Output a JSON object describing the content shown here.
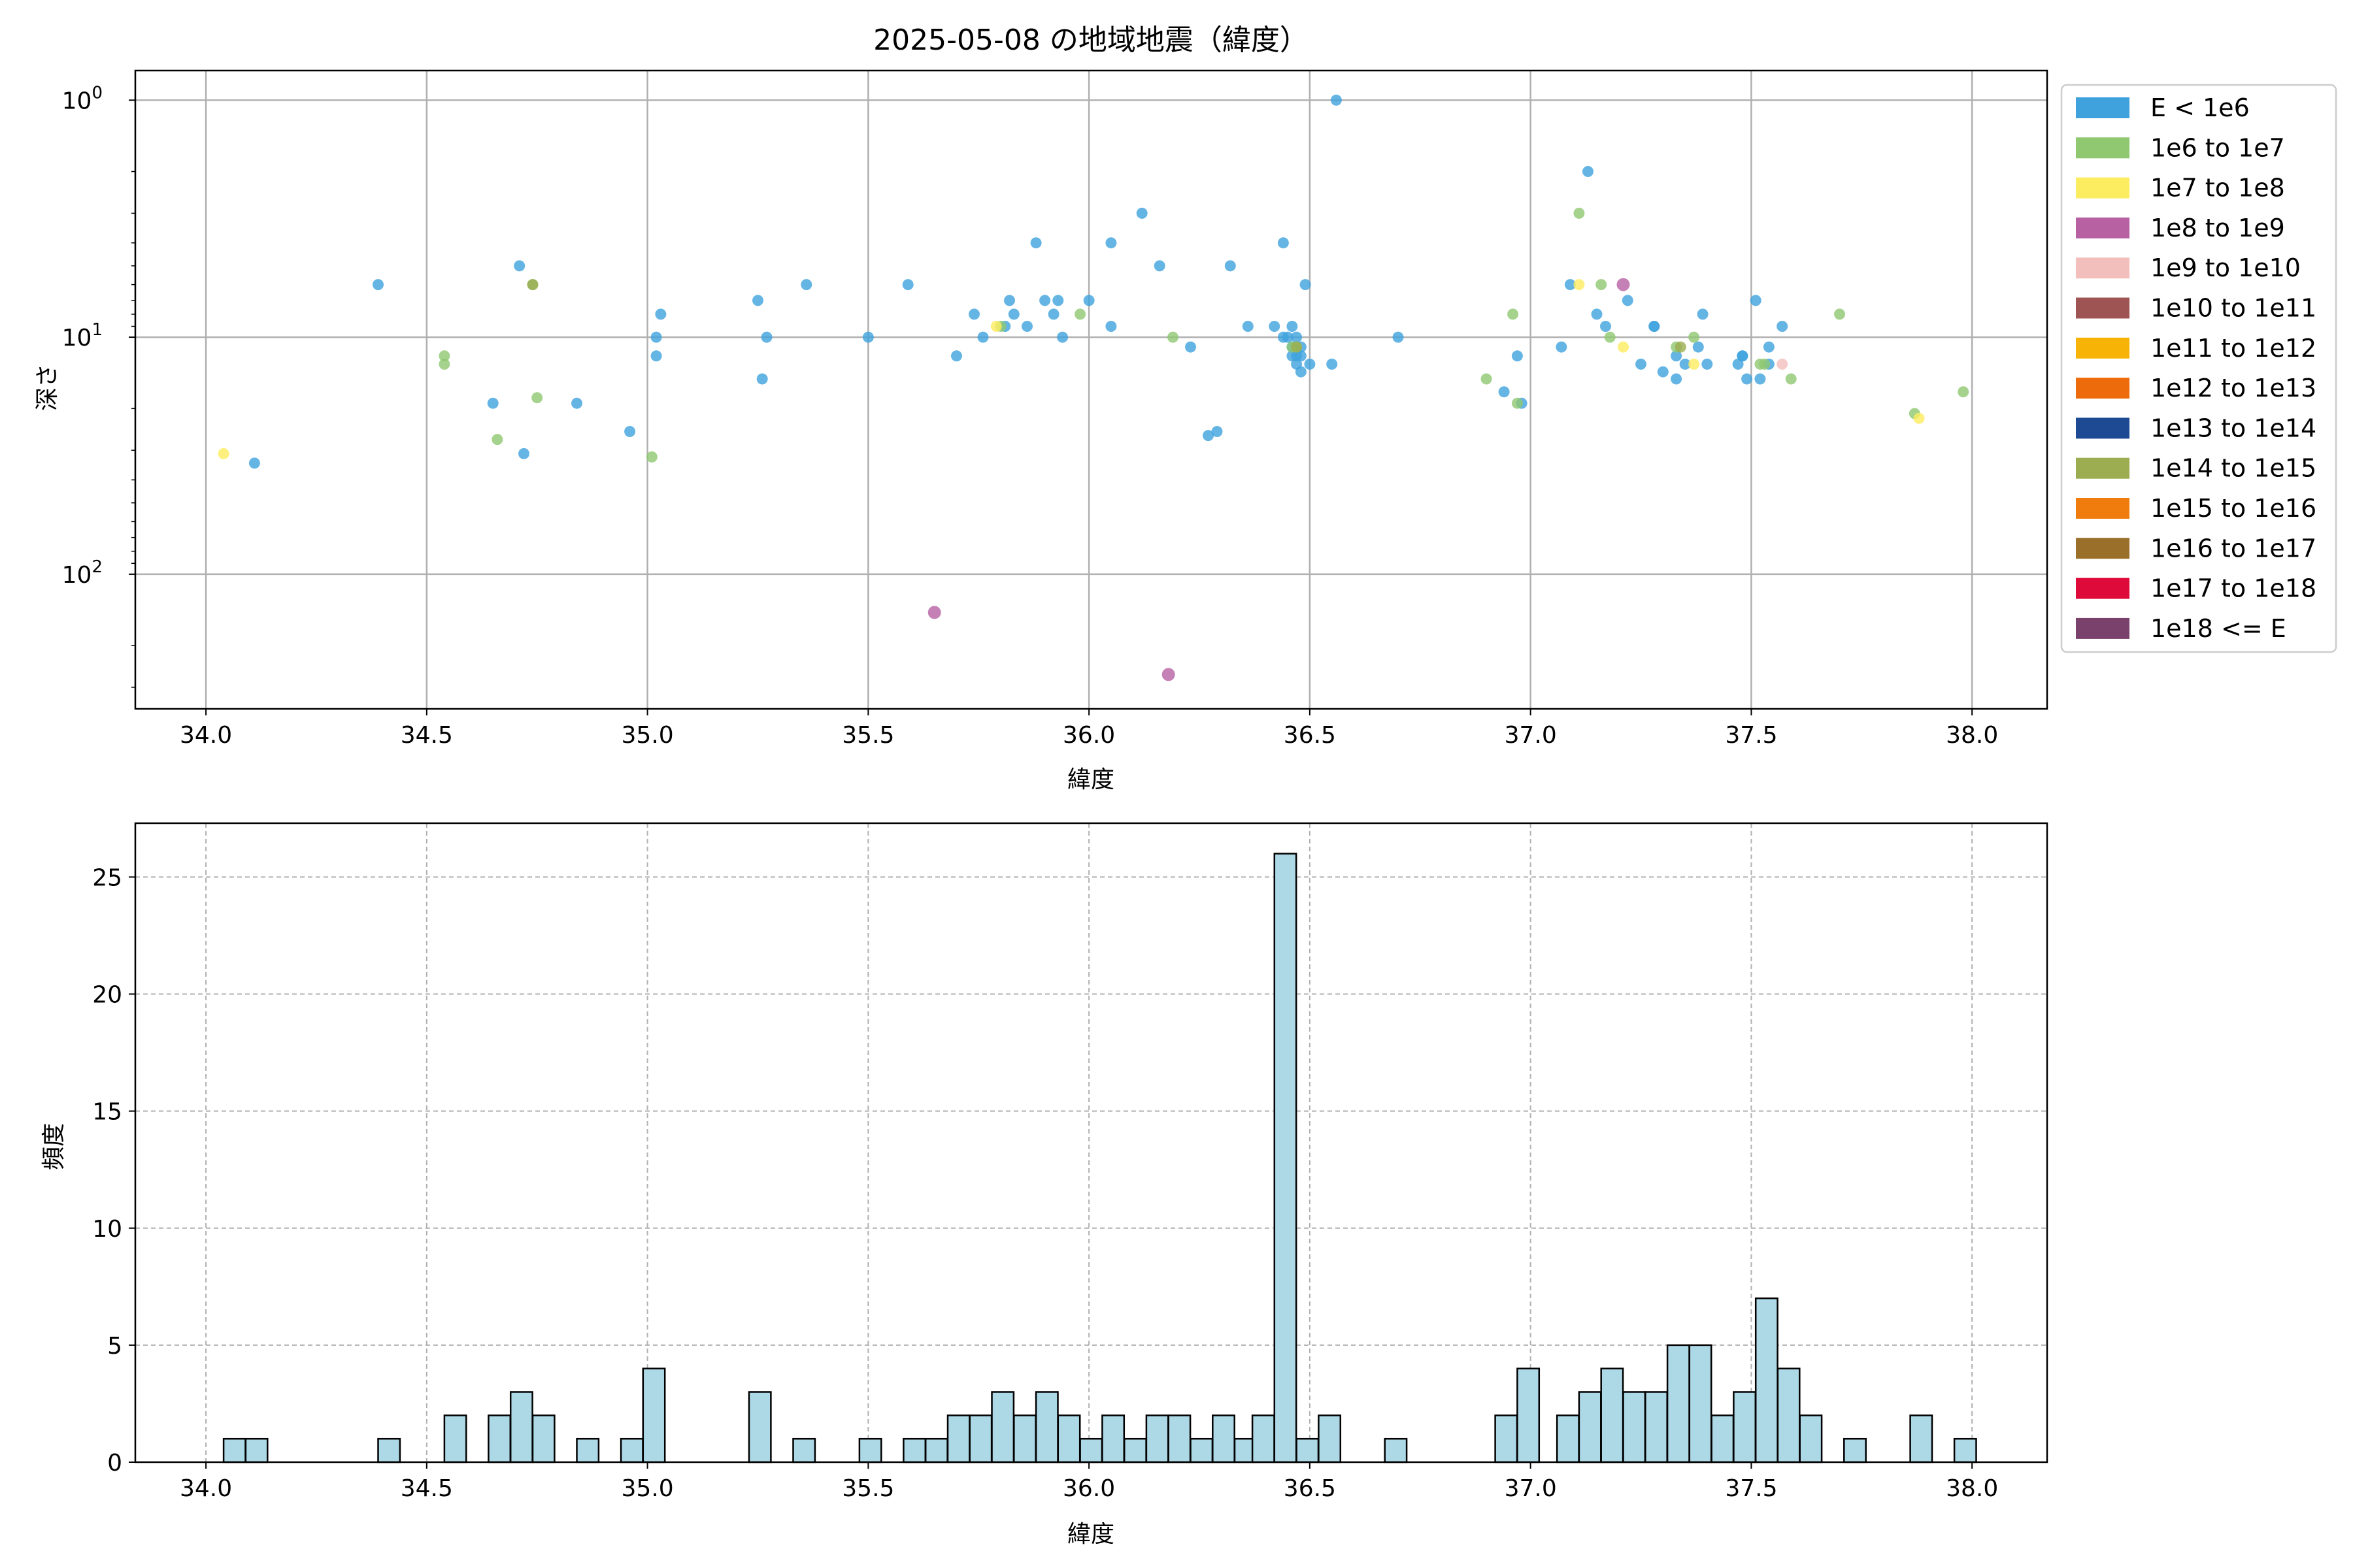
{
  "title": "2025-05-08 の地域地震（緯度）",
  "chart_data": [
    {
      "type": "scatter",
      "xlabel": "緯度",
      "ylabel": "深さ",
      "xlim": [
        33.84,
        38.17
      ],
      "ylim": [
        370,
        0.75
      ],
      "yscale": "log",
      "y_inverted": true,
      "grid": true,
      "legend_position": "outside-right",
      "xticks": [
        "34.0",
        "34.5",
        "35.0",
        "35.5",
        "36.0",
        "36.5",
        "37.0",
        "37.5",
        "38.0"
      ],
      "yticks": [
        {
          "value": 1,
          "label": "10^0"
        },
        {
          "value": 10,
          "label": "10^1"
        },
        {
          "value": 100,
          "label": "10^2"
        }
      ],
      "legend": [
        {
          "label": "E < 1e6",
          "color": "#3fa2dd"
        },
        {
          "label": "1e6 to 1e7",
          "color": "#8fc870"
        },
        {
          "label": "1e7 to 1e8",
          "color": "#fcec5f"
        },
        {
          "label": "1e8 to 1e9",
          "color": "#b761a3"
        },
        {
          "label": "1e9 to 1e10",
          "color": "#f3bfbd"
        },
        {
          "label": "1e10 to 1e11",
          "color": "#9d5452"
        },
        {
          "label": "1e11 to 1e12",
          "color": "#f8b406"
        },
        {
          "label": "1e12 to 1e13",
          "color": "#ee6b0b"
        },
        {
          "label": "1e13 to 1e14",
          "color": "#1d4a93"
        },
        {
          "label": "1e14 to 1e15",
          "color": "#9bad50"
        },
        {
          "label": "1e15 to 1e16",
          "color": "#ef7c0c"
        },
        {
          "label": "1e16 to 1e17",
          "color": "#9a6f2a"
        },
        {
          "label": "1e17 to 1e18",
          "color": "#de0a3a"
        },
        {
          "label": "1e18 <= E",
          "color": "#7a416c"
        }
      ],
      "series": [
        {
          "class": 0,
          "points": [
            [
              34.11,
              34
            ],
            [
              34.39,
              6
            ],
            [
              34.65,
              19
            ],
            [
              34.71,
              5
            ],
            [
              34.72,
              31
            ],
            [
              34.84,
              19
            ],
            [
              34.96,
              25
            ],
            [
              35.02,
              10
            ],
            [
              35.02,
              12
            ],
            [
              35.03,
              8
            ],
            [
              35.25,
              7
            ],
            [
              35.26,
              15
            ],
            [
              35.27,
              10
            ],
            [
              35.36,
              6
            ],
            [
              35.5,
              10
            ],
            [
              35.59,
              6
            ],
            [
              35.7,
              12
            ],
            [
              35.74,
              8
            ],
            [
              35.76,
              10
            ],
            [
              35.81,
              9
            ],
            [
              35.82,
              7
            ],
            [
              35.83,
              8
            ],
            [
              35.86,
              9
            ],
            [
              35.88,
              4
            ],
            [
              35.9,
              7
            ],
            [
              35.92,
              8
            ],
            [
              35.93,
              7
            ],
            [
              35.94,
              10
            ],
            [
              36.0,
              7
            ],
            [
              36.05,
              9
            ],
            [
              36.05,
              4
            ],
            [
              36.12,
              3
            ],
            [
              36.16,
              5
            ],
            [
              36.23,
              11
            ],
            [
              36.27,
              26
            ],
            [
              36.29,
              25
            ],
            [
              36.32,
              5
            ],
            [
              36.36,
              9
            ],
            [
              36.42,
              9
            ],
            [
              36.44,
              4
            ],
            [
              36.44,
              10
            ],
            [
              36.45,
              10
            ],
            [
              36.46,
              9
            ],
            [
              36.46,
              11
            ],
            [
              36.46,
              12
            ],
            [
              36.47,
              13
            ],
            [
              36.47,
              12
            ],
            [
              36.48,
              12
            ],
            [
              36.48,
              14
            ],
            [
              36.47,
              10
            ],
            [
              36.48,
              11
            ],
            [
              36.49,
              6
            ],
            [
              36.5,
              13
            ],
            [
              36.55,
              13
            ],
            [
              36.56,
              1
            ],
            [
              36.7,
              10
            ],
            [
              36.94,
              17
            ],
            [
              36.97,
              12
            ],
            [
              36.98,
              19
            ],
            [
              37.07,
              11
            ],
            [
              37.09,
              6
            ],
            [
              37.13,
              2
            ],
            [
              37.15,
              8
            ],
            [
              37.17,
              9
            ],
            [
              37.22,
              7
            ],
            [
              37.25,
              13
            ],
            [
              37.28,
              9
            ],
            [
              37.28,
              9
            ],
            [
              37.3,
              14
            ],
            [
              37.33,
              12
            ],
            [
              37.33,
              15
            ],
            [
              37.35,
              13
            ],
            [
              37.38,
              11
            ],
            [
              37.39,
              8
            ],
            [
              37.4,
              13
            ],
            [
              37.47,
              13
            ],
            [
              37.48,
              12
            ],
            [
              37.48,
              12
            ],
            [
              37.49,
              15
            ],
            [
              37.51,
              7
            ],
            [
              37.52,
              15
            ],
            [
              37.54,
              13
            ],
            [
              37.54,
              11
            ],
            [
              37.57,
              9
            ]
          ]
        },
        {
          "class": 1,
          "points": [
            [
              34.54,
              12
            ],
            [
              34.54,
              13
            ],
            [
              34.66,
              27
            ],
            [
              34.74,
              6
            ],
            [
              34.75,
              18
            ],
            [
              35.01,
              32
            ],
            [
              35.8,
              9
            ],
            [
              35.98,
              8
            ],
            [
              36.19,
              10
            ],
            [
              36.46,
              11
            ],
            [
              36.47,
              11
            ],
            [
              36.9,
              15
            ],
            [
              36.96,
              8
            ],
            [
              36.97,
              19
            ],
            [
              37.11,
              3
            ],
            [
              37.16,
              6
            ],
            [
              37.18,
              10
            ],
            [
              37.33,
              11
            ],
            [
              37.37,
              10
            ],
            [
              37.52,
              13
            ],
            [
              37.53,
              13
            ],
            [
              37.59,
              15
            ],
            [
              37.7,
              8
            ],
            [
              37.87,
              21
            ],
            [
              37.98,
              17
            ]
          ]
        },
        {
          "class": 2,
          "points": [
            [
              34.04,
              31
            ],
            [
              35.79,
              9
            ],
            [
              37.11,
              6
            ],
            [
              37.21,
              11
            ],
            [
              37.37,
              13
            ],
            [
              37.88,
              22
            ]
          ]
        },
        {
          "class": 3,
          "points": [
            [
              35.65,
              145
            ],
            [
              36.18,
              265
            ],
            [
              37.21,
              6
            ]
          ]
        },
        {
          "class": 4,
          "points": [
            [
              37.57,
              13
            ]
          ]
        },
        {
          "class": 9,
          "points": [
            [
              34.74,
              6
            ],
            [
              36.47,
              11
            ],
            [
              37.34,
              11
            ]
          ]
        }
      ]
    },
    {
      "type": "bar",
      "subtype": "histogram",
      "xlabel": "緯度",
      "ylabel": "頻度",
      "xlim": [
        33.84,
        38.17
      ],
      "ylim": [
        0,
        27.3
      ],
      "grid": true,
      "bar_color": "#add8e6",
      "edge_color": "#000000",
      "bin_width": 0.0494,
      "xticks": [
        "34.0",
        "34.5",
        "35.0",
        "35.5",
        "36.0",
        "36.5",
        "37.0",
        "37.5",
        "38.0"
      ],
      "yticks": [
        "0",
        "5",
        "10",
        "15",
        "20",
        "25"
      ],
      "bins": [
        {
          "start": 34.04,
          "count": 1
        },
        {
          "start": 34.09,
          "count": 1
        },
        {
          "start": 34.39,
          "count": 1
        },
        {
          "start": 34.54,
          "count": 2
        },
        {
          "start": 34.64,
          "count": 2
        },
        {
          "start": 34.69,
          "count": 3
        },
        {
          "start": 34.74,
          "count": 2
        },
        {
          "start": 34.84,
          "count": 1
        },
        {
          "start": 34.94,
          "count": 1
        },
        {
          "start": 34.99,
          "count": 4
        },
        {
          "start": 35.23,
          "count": 3
        },
        {
          "start": 35.33,
          "count": 1
        },
        {
          "start": 35.48,
          "count": 1
        },
        {
          "start": 35.58,
          "count": 1
        },
        {
          "start": 35.63,
          "count": 1
        },
        {
          "start": 35.68,
          "count": 2
        },
        {
          "start": 35.73,
          "count": 2
        },
        {
          "start": 35.78,
          "count": 3
        },
        {
          "start": 35.83,
          "count": 2
        },
        {
          "start": 35.88,
          "count": 3
        },
        {
          "start": 35.93,
          "count": 2
        },
        {
          "start": 35.98,
          "count": 1
        },
        {
          "start": 36.03,
          "count": 2
        },
        {
          "start": 36.08,
          "count": 1
        },
        {
          "start": 36.13,
          "count": 2
        },
        {
          "start": 36.18,
          "count": 2
        },
        {
          "start": 36.23,
          "count": 1
        },
        {
          "start": 36.28,
          "count": 2
        },
        {
          "start": 36.33,
          "count": 1
        },
        {
          "start": 36.37,
          "count": 2
        },
        {
          "start": 36.42,
          "count": 26
        },
        {
          "start": 36.47,
          "count": 1
        },
        {
          "start": 36.52,
          "count": 2
        },
        {
          "start": 36.67,
          "count": 1
        },
        {
          "start": 36.92,
          "count": 2
        },
        {
          "start": 36.97,
          "count": 4
        },
        {
          "start": 37.06,
          "count": 2
        },
        {
          "start": 37.11,
          "count": 3
        },
        {
          "start": 37.16,
          "count": 4
        },
        {
          "start": 37.21,
          "count": 3
        },
        {
          "start": 37.26,
          "count": 3
        },
        {
          "start": 37.31,
          "count": 5
        },
        {
          "start": 37.36,
          "count": 5
        },
        {
          "start": 37.41,
          "count": 2
        },
        {
          "start": 37.46,
          "count": 3
        },
        {
          "start": 37.51,
          "count": 7
        },
        {
          "start": 37.56,
          "count": 4
        },
        {
          "start": 37.61,
          "count": 2
        },
        {
          "start": 37.71,
          "count": 1
        },
        {
          "start": 37.86,
          "count": 2
        },
        {
          "start": 37.96,
          "count": 1
        }
      ]
    }
  ]
}
